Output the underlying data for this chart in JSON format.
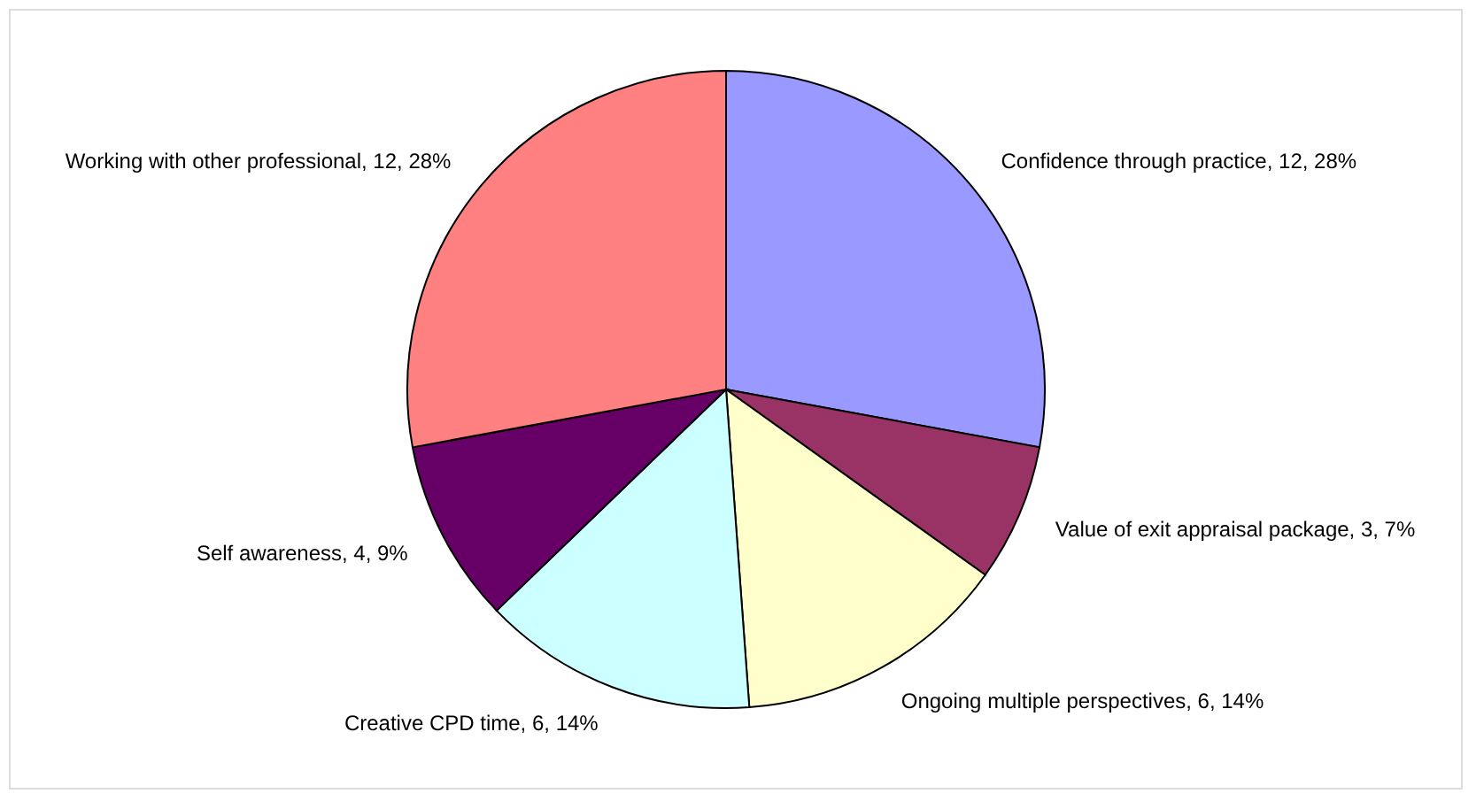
{
  "chart_data": {
    "type": "pie",
    "categories": [
      "Confidence through practice",
      "Value of exit appraisal package",
      "Ongoing multiple perspectives",
      "Creative CPD time",
      "Self awareness",
      "Working with other professional"
    ],
    "values": [
      12,
      3,
      6,
      6,
      4,
      12
    ],
    "colors": [
      "#9999ff",
      "#993366",
      "#ffffcc",
      "#ccffff",
      "#660066",
      "#ff8080"
    ],
    "value_labels": [
      "12, 28%",
      "3, 7%",
      "6, 14%",
      "6, 14%",
      "4, 9%",
      "12, 28%"
    ]
  }
}
